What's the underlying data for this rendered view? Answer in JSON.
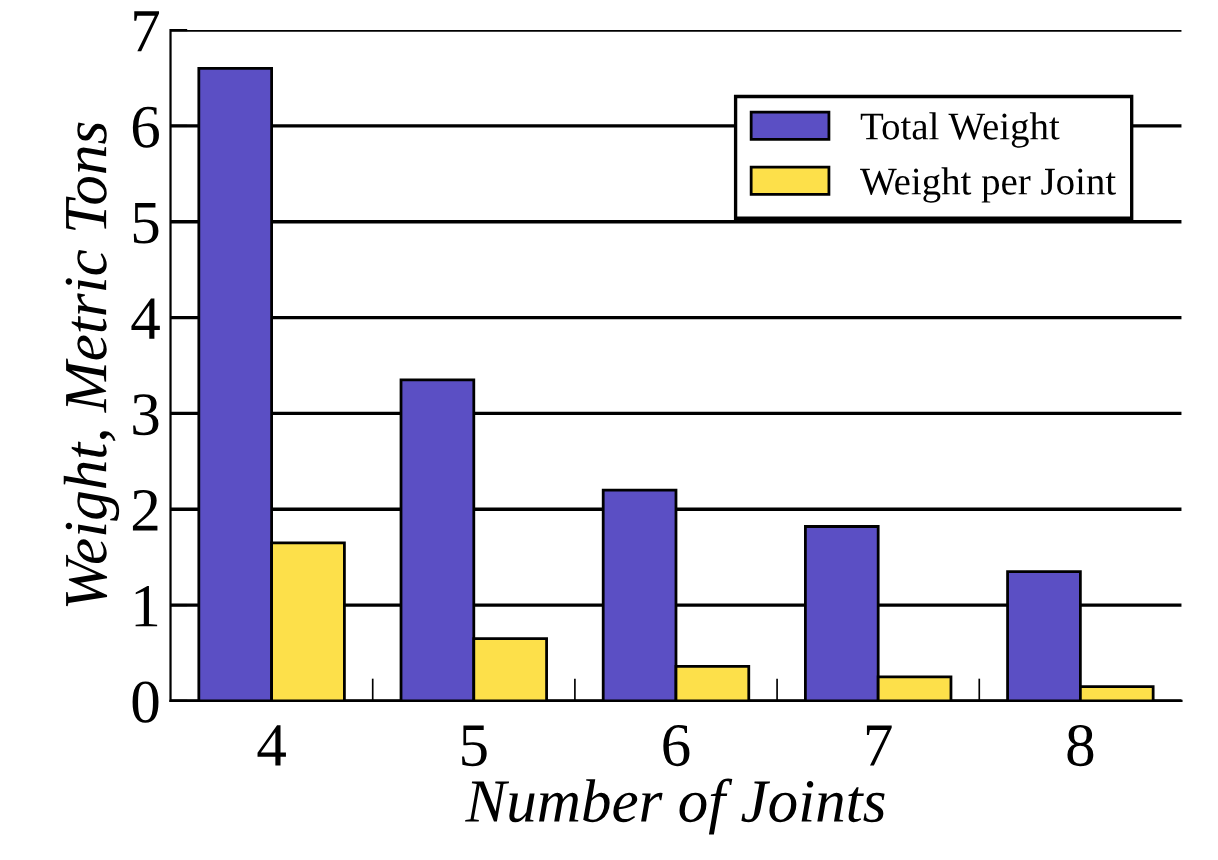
{
  "chart_data": {
    "type": "bar",
    "xlabel": "Number of Joints",
    "ylabel": "Weight, Metric Tons",
    "categories": [
      "4",
      "5",
      "6",
      "7",
      "8"
    ],
    "series": [
      {
        "name": "Total Weight",
        "color": "#5b4fc4",
        "values": [
          6.6,
          3.35,
          2.2,
          1.82,
          1.35
        ]
      },
      {
        "name": "Weight per Joint",
        "color": "#fde04a",
        "values": [
          1.65,
          0.65,
          0.36,
          0.25,
          0.15
        ]
      }
    ],
    "ylim": [
      0,
      7
    ],
    "yticks": [
      0,
      1,
      2,
      3,
      4,
      5,
      6,
      7
    ],
    "grid": "y",
    "legend": "top right"
  }
}
